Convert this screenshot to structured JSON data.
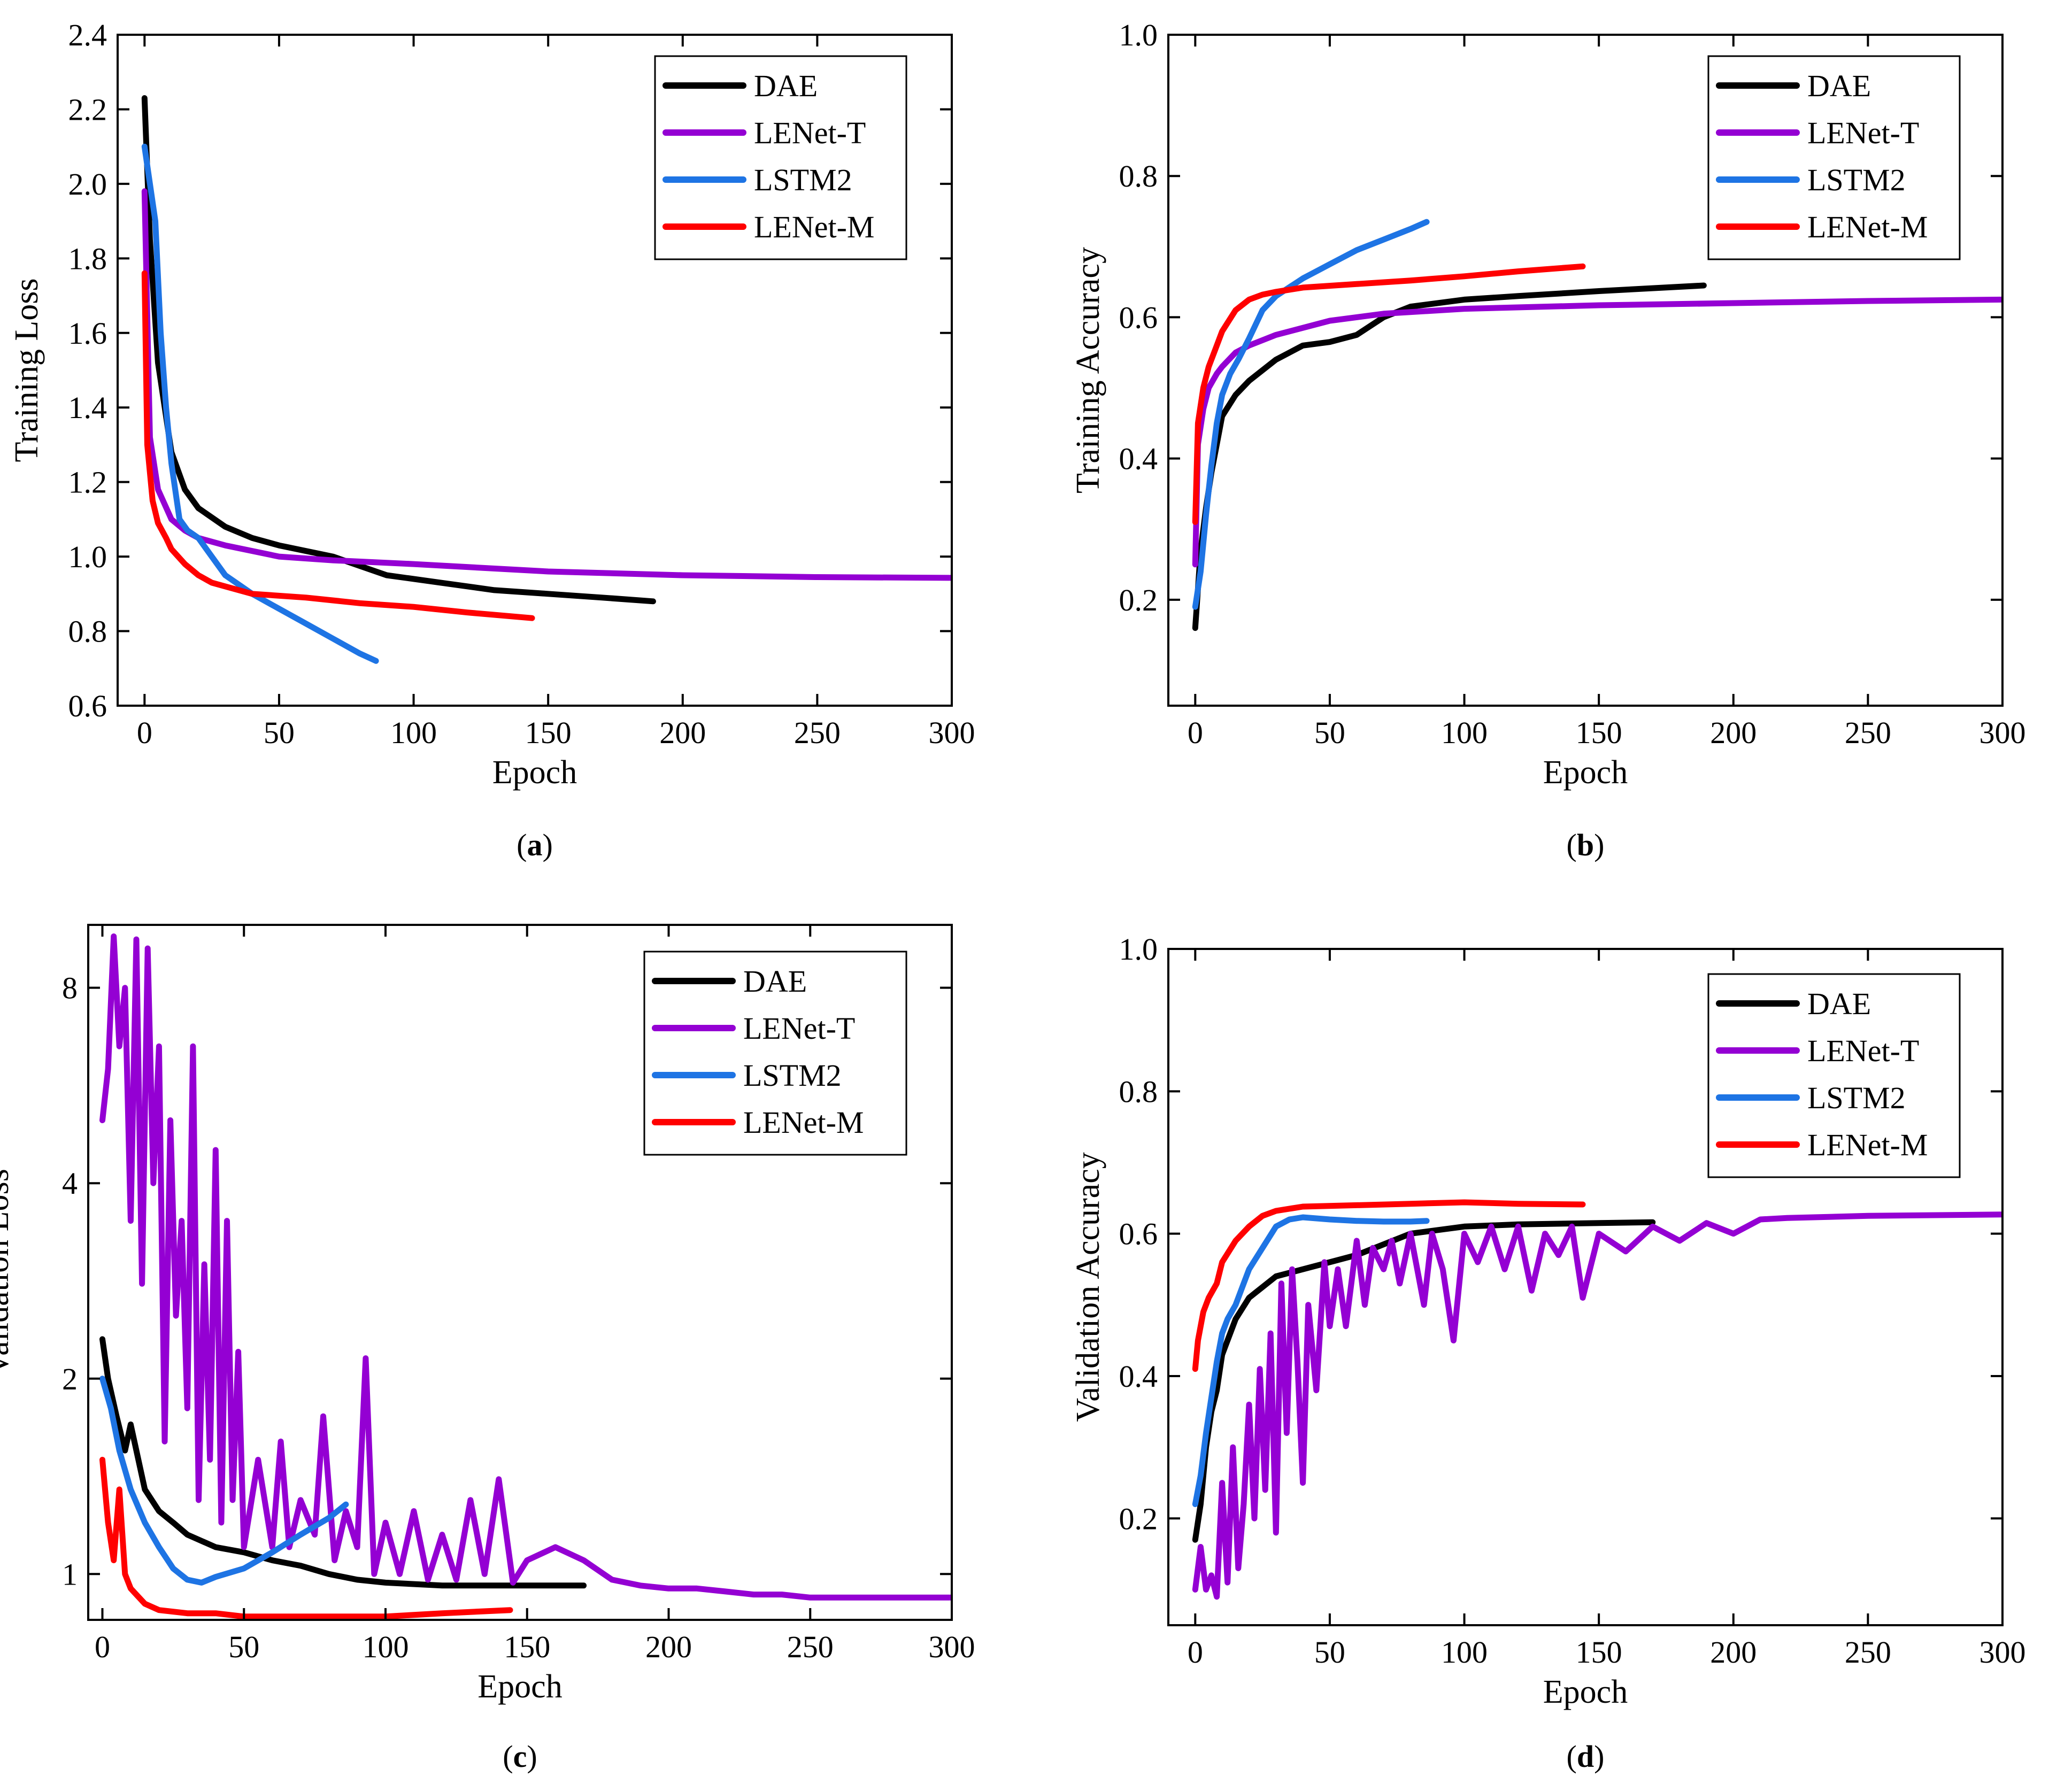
{
  "colors": {
    "DAE": "#000000",
    "LENet-T": "#9400D3",
    "LSTM2": "#1E74E4",
    "LENet-M": "#FF0000"
  },
  "chart_data": [
    {
      "id": "a",
      "type": "line",
      "caption_letter": "a",
      "xlabel": "Epoch",
      "ylabel": "Training Loss",
      "xlim": [
        -10,
        300
      ],
      "ylim": [
        0.6,
        2.4
      ],
      "xticks": [
        0,
        50,
        100,
        150,
        200,
        250,
        300
      ],
      "yticks": [
        0.6,
        0.8,
        1.0,
        1.2,
        1.4,
        1.6,
        1.8,
        2.0,
        2.2,
        2.4
      ],
      "ytick_labels": [
        "0.6",
        "0.8",
        "1.0",
        "1.2",
        "1.4",
        "1.6",
        "1.8",
        "2.0",
        "2.2",
        "2.4"
      ],
      "legend": [
        "DAE",
        "LENet-T",
        "LSTM2",
        "LENet-M"
      ],
      "legend_position": "top-right",
      "series": [
        {
          "name": "DAE",
          "x": [
            0,
            2,
            5,
            10,
            15,
            20,
            30,
            40,
            50,
            70,
            90,
            110,
            130,
            150,
            170,
            189
          ],
          "y": [
            2.23,
            1.85,
            1.52,
            1.28,
            1.18,
            1.13,
            1.08,
            1.05,
            1.03,
            1.0,
            0.95,
            0.93,
            0.91,
            0.9,
            0.89,
            0.88
          ]
        },
        {
          "name": "LENet-T",
          "x": [
            0,
            2,
            5,
            10,
            15,
            20,
            30,
            50,
            70,
            100,
            150,
            200,
            250,
            300
          ],
          "y": [
            1.98,
            1.32,
            1.18,
            1.1,
            1.07,
            1.05,
            1.03,
            1.0,
            0.99,
            0.98,
            0.96,
            0.95,
            0.945,
            0.943
          ]
        },
        {
          "name": "LSTM2",
          "x": [
            0,
            2,
            4,
            6,
            8,
            10,
            13,
            16,
            20,
            25,
            30,
            40,
            50,
            60,
            70,
            80,
            86
          ],
          "y": [
            2.1,
            2.0,
            1.9,
            1.6,
            1.4,
            1.25,
            1.1,
            1.07,
            1.05,
            1.0,
            0.95,
            0.9,
            0.86,
            0.82,
            0.78,
            0.74,
            0.72
          ]
        },
        {
          "name": "LENet-M",
          "x": [
            0,
            1,
            3,
            5,
            8,
            10,
            15,
            20,
            25,
            30,
            40,
            60,
            80,
            100,
            120,
            144
          ],
          "y": [
            1.76,
            1.3,
            1.15,
            1.09,
            1.05,
            1.02,
            0.98,
            0.95,
            0.93,
            0.92,
            0.9,
            0.89,
            0.875,
            0.865,
            0.85,
            0.835
          ]
        }
      ]
    },
    {
      "id": "b",
      "type": "line",
      "caption_letter": "b",
      "xlabel": "Epoch",
      "ylabel": "Training Accuracy",
      "xlim": [
        -10,
        300
      ],
      "ylim": [
        0.05,
        1.0
      ],
      "xticks": [
        0,
        50,
        100,
        150,
        200,
        250,
        300
      ],
      "yticks": [
        0.2,
        0.4,
        0.6,
        0.8,
        1.0
      ],
      "ytick_labels": [
        "0.2",
        "0.4",
        "0.6",
        "0.8",
        "1.0"
      ],
      "legend": [
        "DAE",
        "LENet-T",
        "LSTM2",
        "LENet-M"
      ],
      "legend_position": "top-right",
      "series": [
        {
          "name": "DAE",
          "x": [
            0,
            2,
            4,
            6,
            8,
            10,
            15,
            20,
            30,
            40,
            50,
            60,
            70,
            80,
            100,
            120,
            150,
            189
          ],
          "y": [
            0.16,
            0.27,
            0.33,
            0.38,
            0.42,
            0.46,
            0.49,
            0.51,
            0.54,
            0.56,
            0.565,
            0.575,
            0.6,
            0.615,
            0.625,
            0.63,
            0.637,
            0.645
          ]
        },
        {
          "name": "LENet-T",
          "x": [
            0,
            1,
            3,
            5,
            8,
            10,
            15,
            20,
            30,
            50,
            70,
            100,
            150,
            200,
            250,
            300
          ],
          "y": [
            0.25,
            0.42,
            0.47,
            0.5,
            0.52,
            0.53,
            0.55,
            0.56,
            0.575,
            0.595,
            0.605,
            0.612,
            0.617,
            0.62,
            0.623,
            0.625
          ]
        },
        {
          "name": "LSTM2",
          "x": [
            0,
            2,
            4,
            6,
            8,
            10,
            13,
            16,
            20,
            25,
            30,
            40,
            50,
            60,
            70,
            80,
            86
          ],
          "y": [
            0.19,
            0.24,
            0.32,
            0.39,
            0.45,
            0.49,
            0.52,
            0.54,
            0.57,
            0.61,
            0.63,
            0.655,
            0.675,
            0.695,
            0.71,
            0.725,
            0.735
          ]
        },
        {
          "name": "LENet-M",
          "x": [
            0,
            1,
            3,
            5,
            8,
            10,
            15,
            20,
            25,
            30,
            40,
            60,
            80,
            100,
            120,
            144
          ],
          "y": [
            0.31,
            0.45,
            0.5,
            0.53,
            0.56,
            0.58,
            0.61,
            0.625,
            0.632,
            0.636,
            0.642,
            0.647,
            0.652,
            0.658,
            0.665,
            0.672
          ]
        }
      ]
    },
    {
      "id": "c",
      "type": "line",
      "caption_letter": "c",
      "xlabel": "Epoch",
      "ylabel": "Validation Loss",
      "y_scale": "log",
      "xlim": [
        -5,
        300
      ],
      "ylim": [
        0.85,
        10
      ],
      "xticks": [
        0,
        50,
        100,
        150,
        200,
        250,
        300
      ],
      "yticks": [
        1,
        2,
        4,
        8
      ],
      "ytick_labels": [
        "1",
        "2",
        "4",
        "8"
      ],
      "legend": [
        "DAE",
        "LENet-T",
        "LSTM2",
        "LENet-M"
      ],
      "legend_position": "top-right",
      "series": [
        {
          "name": "DAE",
          "x": [
            0,
            2,
            5,
            8,
            10,
            15,
            20,
            25,
            30,
            40,
            50,
            60,
            70,
            80,
            90,
            100,
            120,
            150,
            170
          ],
          "y": [
            2.3,
            2.0,
            1.75,
            1.55,
            1.7,
            1.35,
            1.25,
            1.2,
            1.15,
            1.1,
            1.08,
            1.05,
            1.03,
            1.0,
            0.98,
            0.97,
            0.96,
            0.96,
            0.96
          ]
        },
        {
          "name": "LENet-T",
          "x": [
            0,
            2,
            4,
            6,
            8,
            10,
            12,
            14,
            16,
            18,
            20,
            22,
            24,
            26,
            28,
            30,
            32,
            34,
            36,
            38,
            40,
            42,
            44,
            46,
            48,
            50,
            55,
            60,
            63,
            66,
            70,
            75,
            78,
            82,
            86,
            90,
            93,
            96,
            100,
            105,
            110,
            115,
            120,
            125,
            130,
            135,
            140,
            145,
            150,
            160,
            170,
            180,
            190,
            200,
            210,
            220,
            230,
            240,
            250,
            270,
            300
          ],
          "y": [
            5.0,
            6.0,
            9.6,
            6.5,
            8.0,
            3.5,
            9.5,
            2.8,
            9.2,
            4.0,
            6.5,
            1.6,
            5.0,
            2.5,
            3.5,
            1.8,
            6.5,
            1.3,
            3.0,
            1.5,
            4.5,
            1.2,
            3.5,
            1.3,
            2.2,
            1.1,
            1.5,
            1.1,
            1.6,
            1.1,
            1.3,
            1.15,
            1.75,
            1.05,
            1.25,
            1.1,
            2.15,
            1.0,
            1.2,
            1.0,
            1.25,
            0.98,
            1.15,
            0.98,
            1.3,
            1.0,
            1.4,
            0.97,
            1.05,
            1.1,
            1.05,
            0.98,
            0.96,
            0.95,
            0.95,
            0.94,
            0.93,
            0.93,
            0.92,
            0.92,
            0.92
          ]
        },
        {
          "name": "LSTM2",
          "x": [
            0,
            3,
            6,
            10,
            15,
            20,
            25,
            30,
            35,
            40,
            50,
            60,
            70,
            80,
            86
          ],
          "y": [
            2.0,
            1.8,
            1.55,
            1.35,
            1.2,
            1.1,
            1.02,
            0.98,
            0.97,
            0.99,
            1.02,
            1.08,
            1.15,
            1.22,
            1.28
          ]
        },
        {
          "name": "LENet-M",
          "x": [
            0,
            2,
            4,
            6,
            8,
            10,
            15,
            20,
            30,
            40,
            50,
            60,
            80,
            100,
            120,
            144
          ],
          "y": [
            1.5,
            1.2,
            1.05,
            1.35,
            1.0,
            0.95,
            0.9,
            0.88,
            0.87,
            0.87,
            0.86,
            0.86,
            0.86,
            0.86,
            0.87,
            0.88
          ]
        }
      ]
    },
    {
      "id": "d",
      "type": "line",
      "caption_letter": "d",
      "xlabel": "Epoch",
      "ylabel": "Validation Accuracy",
      "xlim": [
        -10,
        300
      ],
      "ylim": [
        0.05,
        1.0
      ],
      "xticks": [
        0,
        50,
        100,
        150,
        200,
        250,
        300
      ],
      "yticks": [
        0.2,
        0.4,
        0.6,
        0.8,
        1.0
      ],
      "ytick_labels": [
        "0.2",
        "0.4",
        "0.6",
        "0.8",
        "1.0"
      ],
      "legend": [
        "DAE",
        "LENet-T",
        "LSTM2",
        "LENet-M"
      ],
      "legend_position": "top-right",
      "series": [
        {
          "name": "DAE",
          "x": [
            0,
            2,
            4,
            6,
            8,
            10,
            15,
            20,
            30,
            40,
            50,
            60,
            70,
            80,
            100,
            120,
            150,
            170
          ],
          "y": [
            0.17,
            0.22,
            0.3,
            0.35,
            0.38,
            0.43,
            0.48,
            0.51,
            0.54,
            0.55,
            0.56,
            0.57,
            0.585,
            0.6,
            0.61,
            0.613,
            0.615,
            0.616
          ]
        },
        {
          "name": "LENet-T",
          "x": [
            0,
            2,
            4,
            6,
            8,
            10,
            12,
            14,
            16,
            18,
            20,
            22,
            24,
            26,
            28,
            30,
            32,
            34,
            36,
            38,
            40,
            42,
            45,
            48,
            50,
            53,
            56,
            60,
            63,
            66,
            70,
            73,
            76,
            80,
            85,
            88,
            92,
            96,
            100,
            105,
            110,
            115,
            120,
            125,
            130,
            135,
            140,
            144,
            150,
            160,
            170,
            180,
            190,
            200,
            210,
            220,
            250,
            300
          ],
          "y": [
            0.1,
            0.16,
            0.1,
            0.12,
            0.09,
            0.25,
            0.11,
            0.3,
            0.13,
            0.22,
            0.36,
            0.2,
            0.41,
            0.24,
            0.46,
            0.18,
            0.53,
            0.32,
            0.55,
            0.42,
            0.25,
            0.5,
            0.38,
            0.56,
            0.47,
            0.55,
            0.47,
            0.59,
            0.5,
            0.58,
            0.55,
            0.59,
            0.53,
            0.6,
            0.5,
            0.6,
            0.55,
            0.45,
            0.6,
            0.56,
            0.61,
            0.55,
            0.61,
            0.52,
            0.6,
            0.57,
            0.61,
            0.51,
            0.6,
            0.575,
            0.61,
            0.59,
            0.615,
            0.6,
            0.62,
            0.622,
            0.625,
            0.627
          ]
        },
        {
          "name": "LSTM2",
          "x": [
            0,
            2,
            4,
            6,
            8,
            10,
            12,
            15,
            18,
            20,
            25,
            30,
            35,
            40,
            50,
            60,
            70,
            80,
            86
          ],
          "y": [
            0.22,
            0.26,
            0.32,
            0.37,
            0.42,
            0.46,
            0.48,
            0.5,
            0.53,
            0.55,
            0.58,
            0.61,
            0.62,
            0.623,
            0.62,
            0.618,
            0.617,
            0.617,
            0.618
          ]
        },
        {
          "name": "LENet-M",
          "x": [
            0,
            1,
            3,
            5,
            8,
            10,
            15,
            20,
            25,
            30,
            40,
            60,
            80,
            100,
            120,
            144
          ],
          "y": [
            0.41,
            0.45,
            0.49,
            0.51,
            0.53,
            0.56,
            0.59,
            0.61,
            0.625,
            0.632,
            0.638,
            0.64,
            0.642,
            0.644,
            0.642,
            0.641
          ]
        }
      ]
    }
  ]
}
